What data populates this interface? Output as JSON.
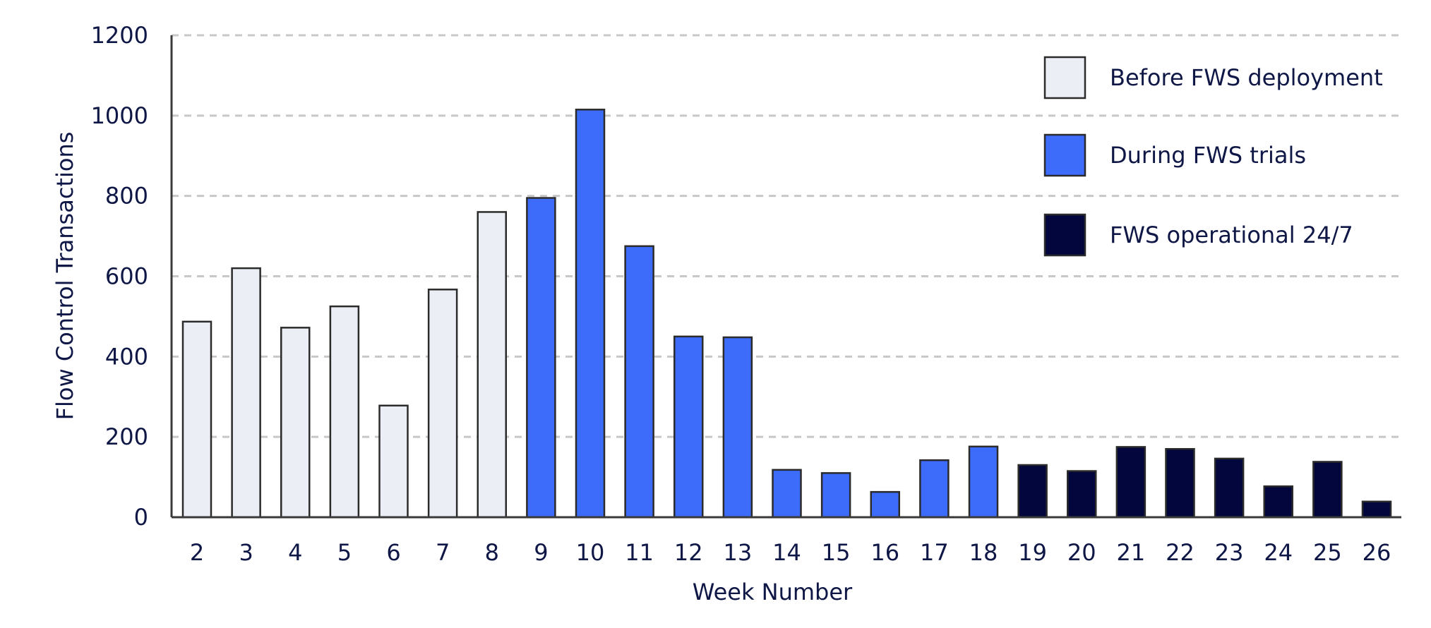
{
  "chart_data": {
    "type": "bar",
    "xlabel": "Week Number",
    "ylabel": "Flow Control Transactions",
    "ylim": [
      0,
      1200
    ],
    "yticks": [
      "0",
      "200",
      "400",
      "600",
      "800",
      "1000",
      "1200"
    ],
    "grid": true,
    "legend_position": "top-right",
    "categories": [
      "2",
      "3",
      "4",
      "5",
      "6",
      "7",
      "8",
      "9",
      "10",
      "11",
      "12",
      "13",
      "14",
      "15",
      "16",
      "17",
      "18",
      "19",
      "20",
      "21",
      "22",
      "23",
      "24",
      "25",
      "26"
    ],
    "values": [
      487,
      620,
      472,
      525,
      278,
      567,
      760,
      795,
      1015,
      675,
      450,
      448,
      118,
      110,
      63,
      142,
      176,
      130,
      115,
      175,
      170,
      146,
      77,
      138,
      39
    ],
    "groups": [
      0,
      0,
      0,
      0,
      0,
      0,
      0,
      1,
      1,
      1,
      1,
      1,
      1,
      1,
      1,
      1,
      1,
      2,
      2,
      2,
      2,
      2,
      2,
      2,
      2
    ],
    "series": [
      {
        "name": "Before FWS deployment",
        "color": "#eceef5"
      },
      {
        "name": "During FWS trials",
        "color": "#3d6bfa"
      },
      {
        "name": "FWS operational 24/7",
        "color": "#02063c"
      }
    ]
  }
}
